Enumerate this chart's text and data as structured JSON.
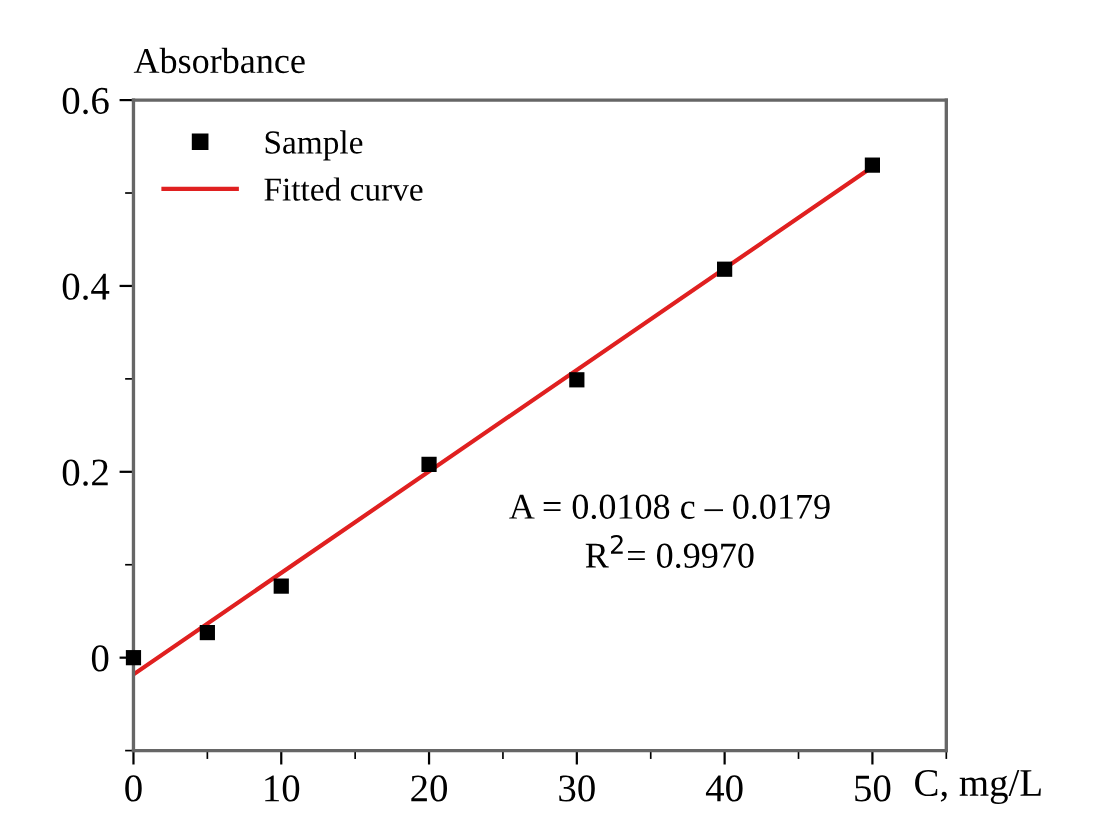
{
  "chart_data": {
    "type": "scatter",
    "xlabel": "C, mg/L",
    "ylabel": "Absorbance",
    "series": [
      {
        "name": "Sample",
        "color": "#000000",
        "marker": "square",
        "x": [
          0,
          5,
          10,
          20,
          30,
          40,
          50
        ],
        "values": [
          0.0,
          0.027,
          0.077,
          0.208,
          0.299,
          0.418,
          0.53
        ]
      },
      {
        "name": "Fitted curve",
        "type": "line",
        "color": "#e02020",
        "line_style": "solid",
        "x": [
          0,
          50
        ],
        "values": [
          -0.018,
          0.528
        ]
      }
    ],
    "xlim": [
      0,
      55
    ],
    "ylim": [
      -0.1,
      0.6
    ],
    "xticks": [
      0,
      10,
      20,
      30,
      40,
      50
    ],
    "yticks": [
      0,
      0.2,
      0.4,
      0.6
    ],
    "annotations": [
      "A = 0.0108 c – 0.0179",
      "R$^{2}$= 0.9970"
    ],
    "legend": "top left",
    "grid": false
  }
}
